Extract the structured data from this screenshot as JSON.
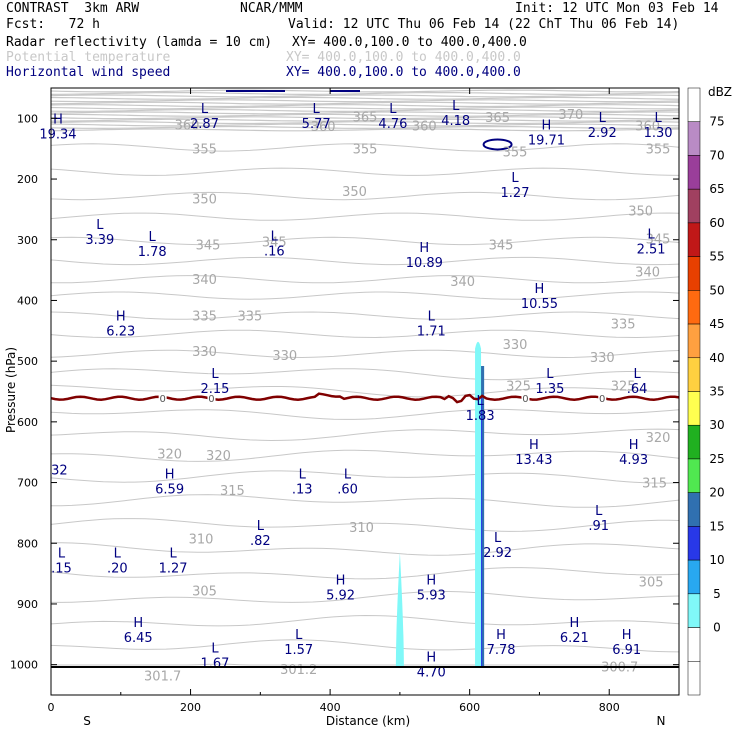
{
  "header": {
    "title_left": "CONTRAST  3km ARW",
    "title_center": "NCAR/MMM",
    "init": "Init: 12 UTC Mon 03 Feb 14",
    "fcst": "Fcst:   72 h",
    "valid": "Valid: 12 UTC Thu 06 Feb 14 (22 ChT Thu 06 Feb 14)"
  },
  "fields": [
    {
      "name": "Radar reflectivity (lamda = 10 cm)",
      "xy": "XY= 400.0,100.0 to 400.0,400.0",
      "color": "#000080"
    },
    {
      "name": "Potential temperature",
      "xy": "XY= 400.0,100.0 to 400.0,400.0",
      "color": "#c8c8c8"
    },
    {
      "name": "Horizontal wind speed",
      "xy": "XY= 400.0,100.0 to 400.0,400.0",
      "color": "#000080"
    }
  ],
  "chart_data": {
    "type": "cross-section",
    "xlabel": "Distance (km)",
    "ylabel": "Pressure (hPa)",
    "xlim": [
      0,
      900
    ],
    "ylim": [
      1050,
      50
    ],
    "x_ticks": [
      "0",
      "200",
      "400",
      "600",
      "800"
    ],
    "x_tick_values": [
      0,
      200,
      400,
      600,
      800
    ],
    "y_ticks": [
      "100",
      "200",
      "300",
      "400",
      "500",
      "600",
      "700",
      "800",
      "900",
      "1000"
    ],
    "y_tick_values": [
      100,
      200,
      300,
      400,
      500,
      600,
      700,
      800,
      900,
      1000
    ],
    "end_labels": {
      "left": "S",
      "right": "N"
    },
    "theta_labels": [
      {
        "text": "370",
        "x": 745,
        "p": 93
      },
      {
        "text": "365",
        "x": 450,
        "p": 97
      },
      {
        "text": "365",
        "x": 640,
        "p": 98
      },
      {
        "text": "360",
        "x": 195,
        "p": 110
      },
      {
        "text": "360",
        "x": 390,
        "p": 113
      },
      {
        "text": "360",
        "x": 535,
        "p": 112
      },
      {
        "text": "360",
        "x": 855,
        "p": 112
      },
      {
        "text": "355",
        "x": 220,
        "p": 150
      },
      {
        "text": "355",
        "x": 450,
        "p": 150
      },
      {
        "text": "355",
        "x": 665,
        "p": 155
      },
      {
        "text": "355",
        "x": 870,
        "p": 150
      },
      {
        "text": "350",
        "x": 435,
        "p": 220
      },
      {
        "text": "350",
        "x": 220,
        "p": 232
      },
      {
        "text": "350",
        "x": 845,
        "p": 252
      },
      {
        "text": "345",
        "x": 225,
        "p": 308
      },
      {
        "text": "345",
        "x": 320,
        "p": 303
      },
      {
        "text": "345",
        "x": 645,
        "p": 308
      },
      {
        "text": "345",
        "x": 870,
        "p": 298
      },
      {
        "text": "340",
        "x": 220,
        "p": 365
      },
      {
        "text": "340",
        "x": 590,
        "p": 368
      },
      {
        "text": "340",
        "x": 855,
        "p": 352
      },
      {
        "text": "335",
        "x": 220,
        "p": 425
      },
      {
        "text": "335",
        "x": 285,
        "p": 425
      },
      {
        "text": "335",
        "x": 820,
        "p": 438
      },
      {
        "text": "330",
        "x": 220,
        "p": 483
      },
      {
        "text": "330",
        "x": 335,
        "p": 490
      },
      {
        "text": "330",
        "x": 665,
        "p": 472
      },
      {
        "text": "330",
        "x": 790,
        "p": 493
      },
      {
        "text": "325",
        "x": 670,
        "p": 540
      },
      {
        "text": "325",
        "x": 820,
        "p": 540
      },
      {
        "text": "320",
        "x": 870,
        "p": 625
      },
      {
        "text": "320",
        "x": 170,
        "p": 652
      },
      {
        "text": "320",
        "x": 240,
        "p": 655
      },
      {
        "text": "315",
        "x": 260,
        "p": 712
      },
      {
        "text": "315",
        "x": 865,
        "p": 700
      },
      {
        "text": "310",
        "x": 215,
        "p": 792
      },
      {
        "text": "310",
        "x": 445,
        "p": 773
      },
      {
        "text": "305",
        "x": 220,
        "p": 878
      },
      {
        "text": "305",
        "x": 860,
        "p": 863
      },
      {
        "text": "301.7",
        "x": 160,
        "p": 1018
      },
      {
        "text": "301.2",
        "x": 355,
        "p": 1007
      },
      {
        "text": "300.7",
        "x": 815,
        "p": 1003
      }
    ],
    "wind_extrema": [
      {
        "type": "H",
        "value": "19.34",
        "x": 10,
        "p": 118
      },
      {
        "type": "L",
        "value": "2.87",
        "x": 220,
        "p": 101
      },
      {
        "type": "L",
        "value": "5.77",
        "x": 380,
        "p": 101
      },
      {
        "type": "L",
        "value": "4.76",
        "x": 490,
        "p": 101
      },
      {
        "type": "L",
        "value": "4.18",
        "x": 580,
        "p": 96
      },
      {
        "type": "H",
        "value": "19.71",
        "x": 710,
        "p": 128
      },
      {
        "type": "L",
        "value": "2.92",
        "x": 790,
        "p": 116
      },
      {
        "type": "L",
        "value": "1.30",
        "x": 870,
        "p": 116
      },
      {
        "type": "L",
        "value": "1.27",
        "x": 665,
        "p": 215
      },
      {
        "type": "L",
        "value": "3.39",
        "x": 70,
        "p": 292
      },
      {
        "type": "L",
        "value": "1.78",
        "x": 145,
        "p": 312
      },
      {
        "type": "L",
        "value": ".16",
        "x": 320,
        "p": 311
      },
      {
        "type": "H",
        "value": "10.89",
        "x": 535,
        "p": 330
      },
      {
        "type": "L",
        "value": "2.51",
        "x": 860,
        "p": 308
      },
      {
        "type": "H",
        "value": "10.55",
        "x": 700,
        "p": 398
      },
      {
        "type": "H",
        "value": "6.23",
        "x": 100,
        "p": 443
      },
      {
        "type": "L",
        "value": "1.71",
        "x": 545,
        "p": 443
      },
      {
        "type": "L",
        "value": "2.15",
        "x": 235,
        "p": 538
      },
      {
        "type": "L",
        "value": "1.35",
        "x": 715,
        "p": 538
      },
      {
        "type": "L",
        "value": ".64",
        "x": 840,
        "p": 538
      },
      {
        "type": "L",
        "value": "1.83",
        "x": 615,
        "p": 582
      },
      {
        "type": "H",
        "value": "13.43",
        "x": 692,
        "p": 655
      },
      {
        "type": "H",
        "value": "4.93",
        "x": 835,
        "p": 655
      },
      {
        "type": "",
        "value": "32",
        "x": 12,
        "p": 672
      },
      {
        "type": "H",
        "value": "6.59",
        "x": 170,
        "p": 703
      },
      {
        "type": "L",
        "value": ".13",
        "x": 360,
        "p": 703
      },
      {
        "type": "L",
        "value": ".60",
        "x": 425,
        "p": 703
      },
      {
        "type": "L",
        "value": ".91",
        "x": 785,
        "p": 763
      },
      {
        "type": "L",
        "value": ".82",
        "x": 300,
        "p": 788
      },
      {
        "type": "L",
        "value": "2.92",
        "x": 640,
        "p": 808
      },
      {
        "type": "L",
        "value": ".15",
        "x": 15,
        "p": 833
      },
      {
        "type": "L",
        "value": ".20",
        "x": 95,
        "p": 833
      },
      {
        "type": "L",
        "value": "1.27",
        "x": 175,
        "p": 833
      },
      {
        "type": "H",
        "value": "5.92",
        "x": 415,
        "p": 878
      },
      {
        "type": "H",
        "value": "5.93",
        "x": 545,
        "p": 878
      },
      {
        "type": "H",
        "value": "6.45",
        "x": 125,
        "p": 948
      },
      {
        "type": "L",
        "value": "1.57",
        "x": 355,
        "p": 968
      },
      {
        "type": "H",
        "value": "7.78",
        "x": 645,
        "p": 968
      },
      {
        "type": "H",
        "value": "6.21",
        "x": 750,
        "p": 948
      },
      {
        "type": "H",
        "value": "6.91",
        "x": 825,
        "p": 968
      },
      {
        "type": "L",
        "value": "1.67",
        "x": 235,
        "p": 990
      },
      {
        "type": "H",
        "value": "4.70",
        "x": 545,
        "p": 1005
      }
    ],
    "freezing_level": {
      "label": "0",
      "p": 561,
      "label_x": [
        160,
        230,
        680,
        790
      ],
      "color": "#800000"
    },
    "reflectivity_cores": [
      {
        "name": "main-core",
        "x": 615,
        "p_top": 508,
        "p_bottom": 1005,
        "dbz": 20
      },
      {
        "name": "outer-echo",
        "x": 612,
        "p_top": 463,
        "p_bottom": 1005,
        "dbz": 5
      },
      {
        "name": "weak-echo",
        "x": 500,
        "p_top": 815,
        "p_bottom": 1005,
        "dbz": 5
      }
    ],
    "colorbar": {
      "title": "dBZ",
      "labels": [
        "75",
        "70",
        "65",
        "60",
        "55",
        "50",
        "45",
        "40",
        "35",
        "30",
        "25",
        "20",
        "15",
        "10",
        "5",
        "0"
      ],
      "colors": [
        "#ffffff",
        "#b98bc5",
        "#9a3e9a",
        "#a04060",
        "#c01818",
        "#e84000",
        "#ff6a10",
        "#ffa040",
        "#ffd040",
        "#ffff50",
        "#20b020",
        "#50e850",
        "#3070b0",
        "#2838e8",
        "#28a8f0",
        "#80f8f8",
        "#ffffff",
        "#ffffff"
      ]
    }
  }
}
